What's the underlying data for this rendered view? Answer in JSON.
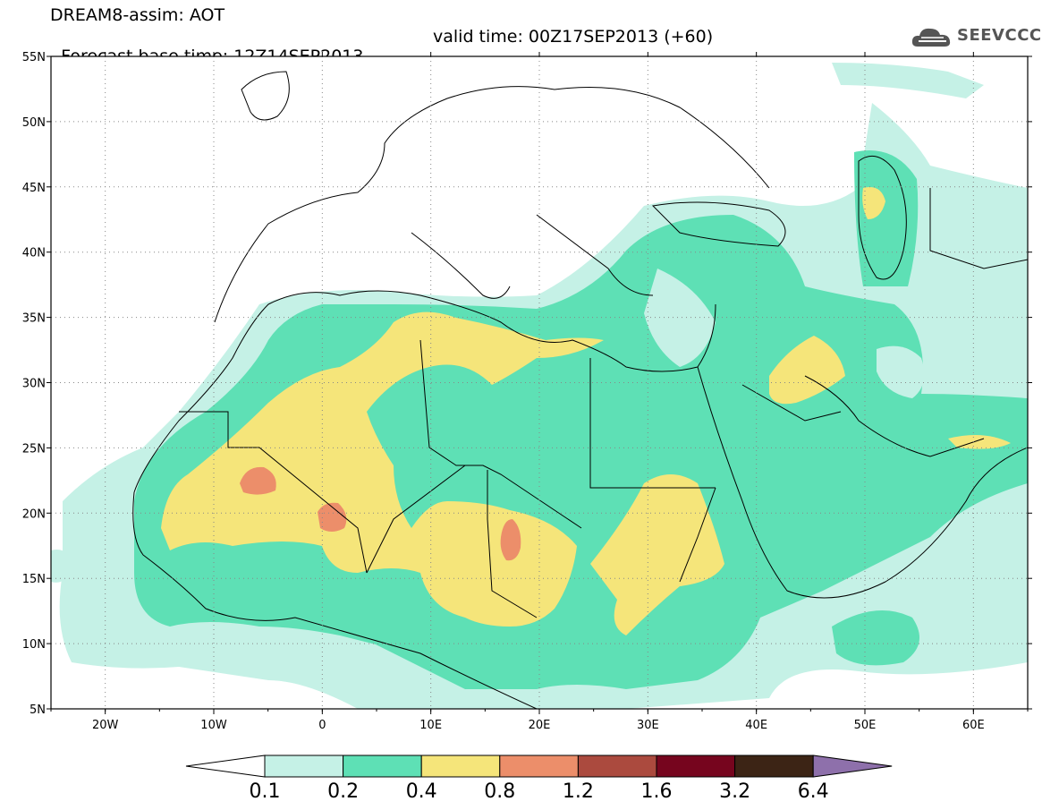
{
  "header": {
    "line1": "DREAM8-assim: AOT",
    "line2_base": "Forecast base time: 12Z14SEP2013",
    "line2_valid": "valid time: 00Z17SEP2013 (+60)"
  },
  "logo": {
    "text": "SEEVCCC",
    "icon": "cloud-icon",
    "color": "#555555"
  },
  "map": {
    "lon_range": [
      -25,
      65
    ],
    "lat_range": [
      5,
      55
    ],
    "lat_ticks": [
      "55N",
      "50N",
      "45N",
      "40N",
      "35N",
      "30N",
      "25N",
      "20N",
      "15N",
      "10N",
      "5N"
    ],
    "lon_ticks": [
      "20W",
      "10W",
      "0",
      "10E",
      "20E",
      "30E",
      "40E",
      "50E",
      "60E"
    ],
    "gridlines": "dotted"
  },
  "legend": {
    "labels": [
      "0.1",
      "0.2",
      "0.4",
      "0.8",
      "1.2",
      "1.6",
      "3.2",
      "6.4"
    ],
    "colors": [
      "#ffffff",
      "#c5f1e6",
      "#5ee0b5",
      "#f5e57a",
      "#ec8e6a",
      "#ab4a3e",
      "#76051e",
      "#3c2415",
      "#8e70ab"
    ]
  }
}
